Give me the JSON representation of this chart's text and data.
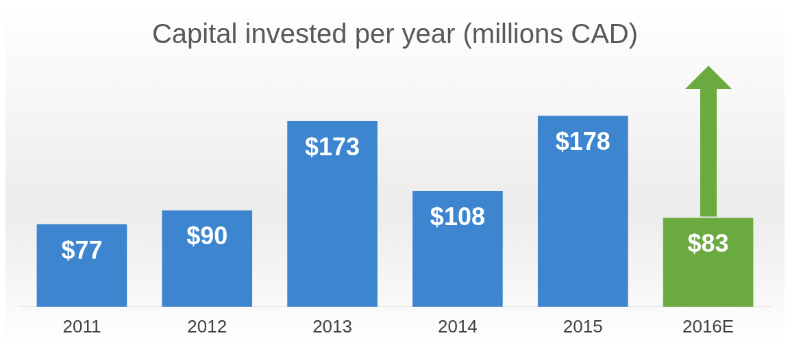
{
  "chart_data": {
    "type": "bar",
    "title": "Capital invested per year (millions CAD)",
    "categories": [
      "2011",
      "2012",
      "2013",
      "2014",
      "2015",
      "2016E"
    ],
    "values": [
      77,
      90,
      173,
      108,
      178,
      83
    ],
    "colors": [
      "#3d85cf",
      "#3d85cf",
      "#3d85cf",
      "#3d85cf",
      "#3d85cf",
      "#6aaa3f"
    ],
    "value_labels": [
      "$77",
      "$90",
      "$173",
      "$108",
      "$178",
      "$83"
    ],
    "grid": false,
    "legend": false
  }
}
